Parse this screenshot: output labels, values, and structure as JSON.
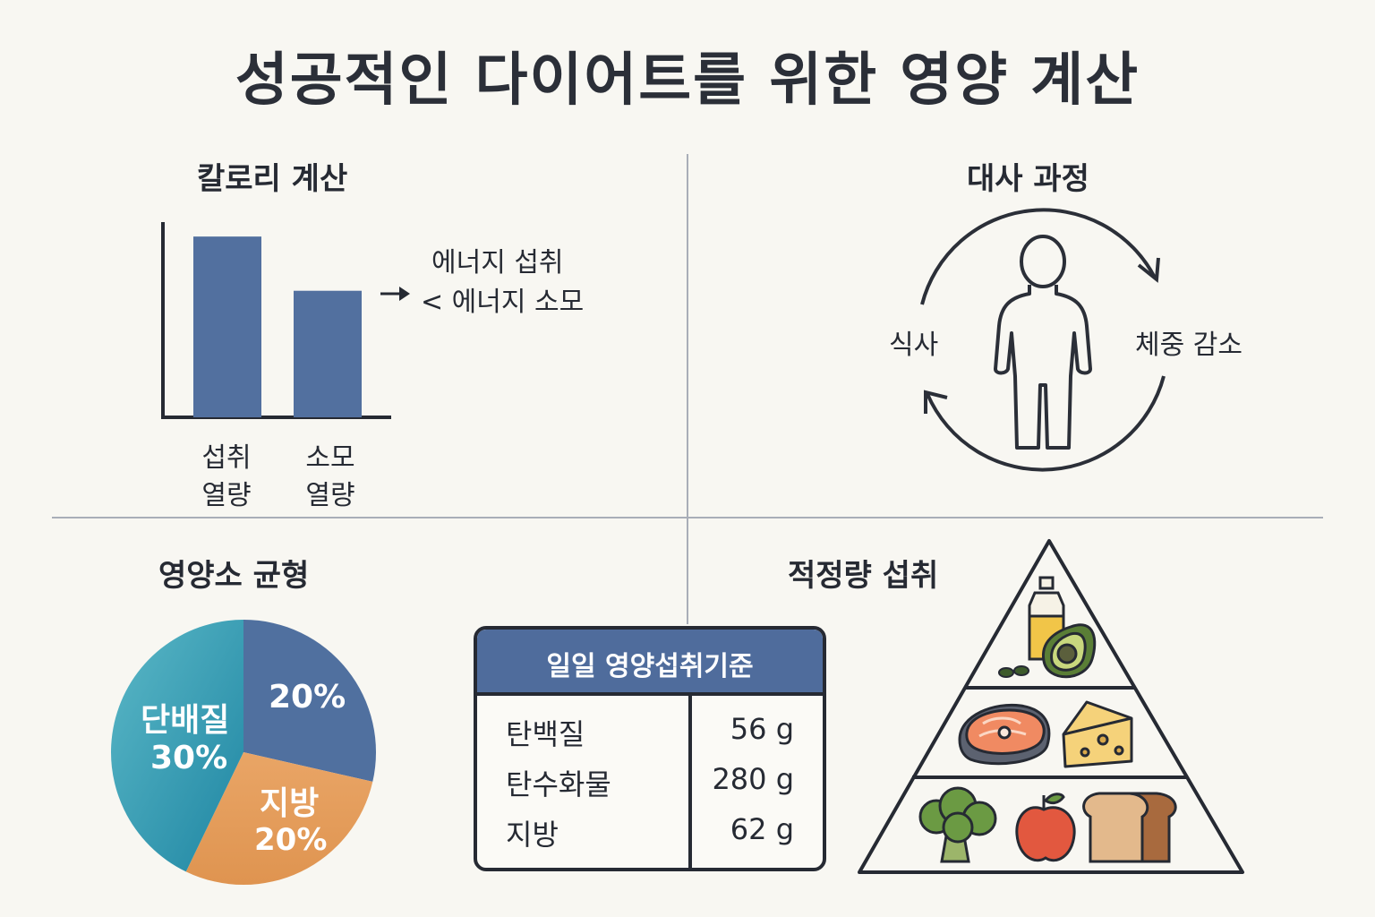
{
  "title": "성공적인 다이어트를 위한 영양 계산",
  "calorie": {
    "heading": "칼로리 계산",
    "note_line1": "에너지 섭취",
    "note_line2": "< 에너지 소모",
    "chart_data": {
      "type": "bar",
      "categories": [
        "섭취 열량",
        "소모 열량"
      ],
      "category_lines": [
        [
          "섭취",
          "열량"
        ],
        [
          "소모",
          "열량"
        ]
      ],
      "values": [
        100,
        70
      ],
      "title": "",
      "xlabel": "",
      "ylabel": "",
      "ylim": [
        0,
        108
      ],
      "bar_color": "#52709f"
    }
  },
  "metabolism": {
    "heading": "대사 과정",
    "left_label": "식사",
    "right_label": "체중 감소",
    "icon": "person-outline-icon"
  },
  "nutrient_balance": {
    "heading": "영양소 균형",
    "chart_data": {
      "type": "pie",
      "slices": [
        {
          "label": "",
          "value": 20,
          "text": "20%",
          "color": "#50709f"
        },
        {
          "label": "지방",
          "value": 20,
          "text": "20%",
          "color": "#e29a58"
        },
        {
          "label": "단배질",
          "value": 30,
          "text": "30%",
          "color": "#2e9bb3"
        }
      ]
    }
  },
  "daily_table": {
    "header": "일일 영양섭취기준",
    "header_color": "#4f6c9c",
    "rows": [
      {
        "name": "탄백질",
        "amount": "56 g"
      },
      {
        "name": "탄수화물",
        "amount": "280 g"
      },
      {
        "name": "지방",
        "amount": "62 g"
      }
    ]
  },
  "intake": {
    "heading": "적정량 섭취",
    "pyramid_top": [
      "oil-bottle-icon",
      "avocado-icon",
      "seeds-icon"
    ],
    "pyramid_middle": [
      "salmon-steak-icon",
      "cheese-wedge-icon"
    ],
    "pyramid_bottom": [
      "broccoli-icon",
      "apple-icon",
      "bread-icon"
    ]
  }
}
